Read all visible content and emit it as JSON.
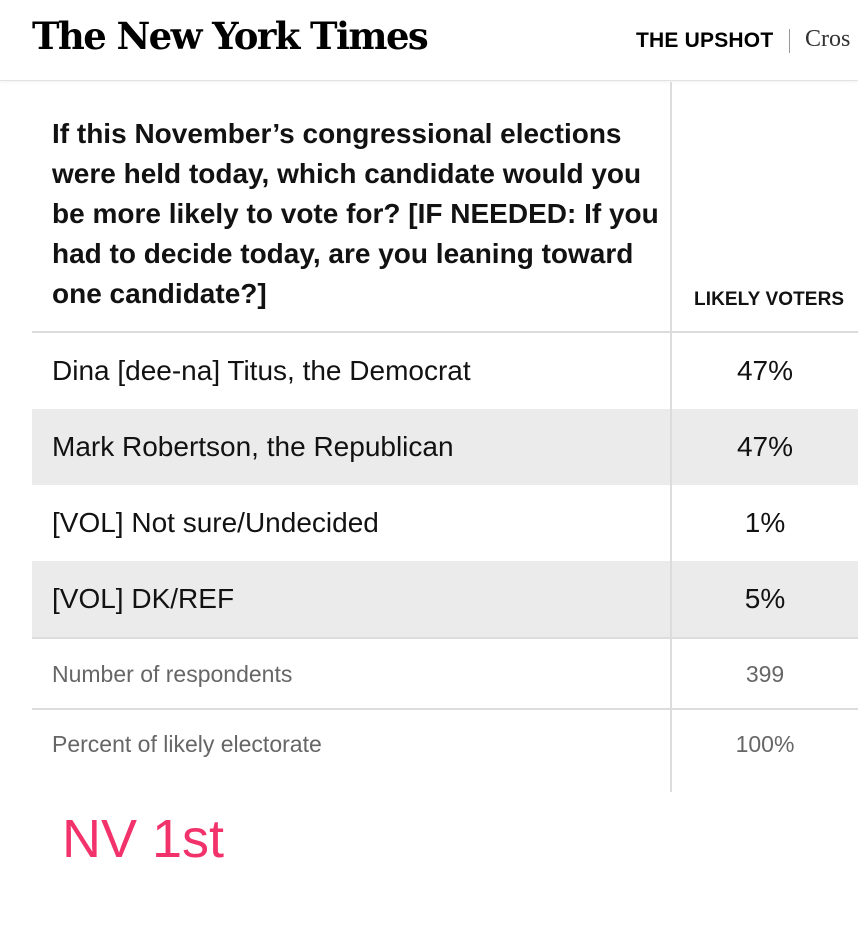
{
  "header": {
    "logo": "The New York Times",
    "section": "THE UPSHOT",
    "nav_partial": "Cros"
  },
  "table": {
    "question": "If this November’s congressional elections were held today, which candidate would you be more likely to vote for? [IF NEEDED: If you had to decide today, are you leaning toward one candidate?]",
    "column_header": "LIKELY VOTERS",
    "rows": [
      {
        "label": "Dina [dee-na] Titus, the Democrat",
        "value": "47%"
      },
      {
        "label": "Mark Robertson, the Republican",
        "value": "47%"
      },
      {
        "label": "[VOL] Not sure/Undecided",
        "value": "1%"
      },
      {
        "label": "[VOL] DK/REF",
        "value": "5%"
      }
    ],
    "respondents": {
      "label": "Number of respondents",
      "value": "399"
    },
    "electorate": {
      "label": "Percent of likely electorate",
      "value": "100%"
    }
  },
  "annotation": {
    "text": "NV 1st",
    "color": "#f2336b"
  }
}
